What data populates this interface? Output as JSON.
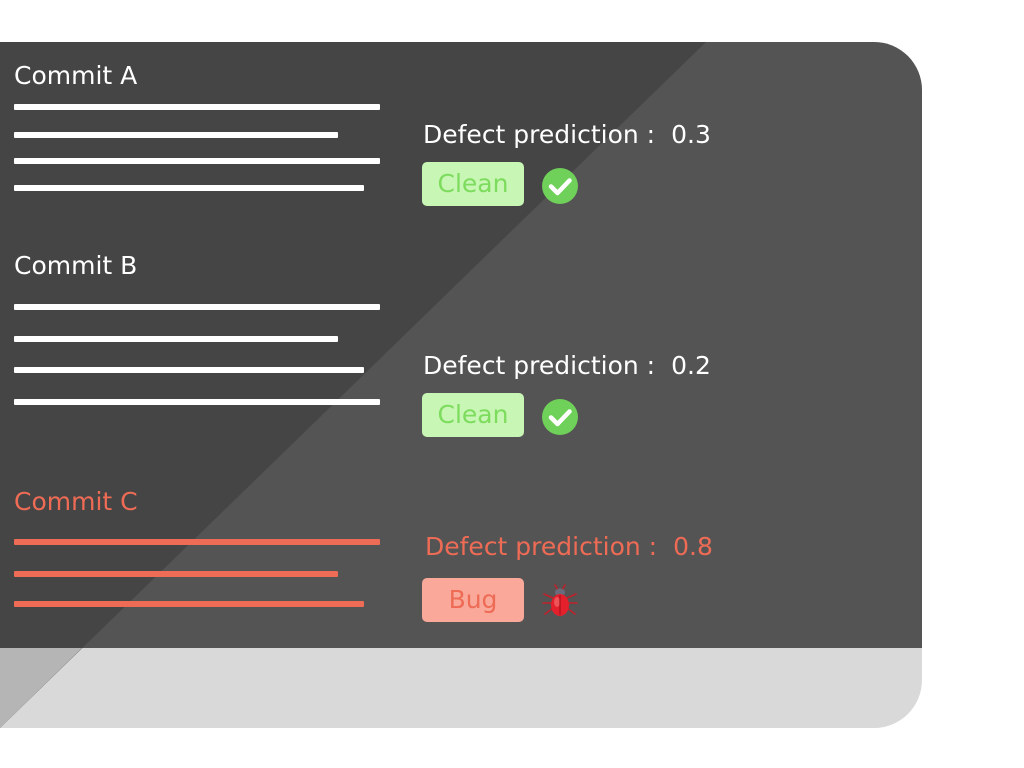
{
  "commits": [
    {
      "title": "Commit A",
      "prediction_label": "Defect prediction :",
      "prediction_value": "0.3",
      "status": "Clean",
      "status_icon": "check-circle-icon"
    },
    {
      "title": "Commit B",
      "prediction_label": "Defect prediction :",
      "prediction_value": "0.2",
      "status": "Clean",
      "status_icon": "check-circle-icon"
    },
    {
      "title": "Commit C",
      "prediction_label": "Defect prediction :",
      "prediction_value": "0.8",
      "status": "Bug",
      "status_icon": "bug-icon"
    }
  ],
  "colors": {
    "screen_dark": "#454545",
    "screen_light": "#545454",
    "base": "#d9d9d9",
    "clean_bg": "#c8f6b4",
    "clean_text": "#7ddc5e",
    "bug_bg": "#f9a89a",
    "bug_text": "#ee6b55",
    "check_green": "#6fd05a"
  }
}
